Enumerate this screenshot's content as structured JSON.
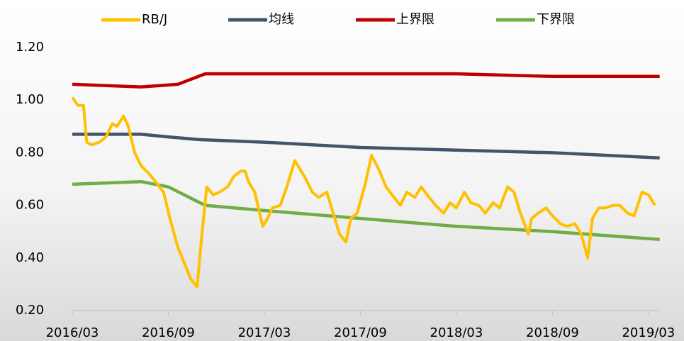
{
  "chart_data": {
    "type": "line",
    "xlim": [
      0,
      36.7
    ],
    "xticks": [
      {
        "value": 0,
        "label": "2016/03"
      },
      {
        "value": 6,
        "label": "2016/09"
      },
      {
        "value": 12,
        "label": "2017/03"
      },
      {
        "value": 18,
        "label": "2017/09"
      },
      {
        "value": 24,
        "label": "2018/03"
      },
      {
        "value": 30,
        "label": "2018/09"
      },
      {
        "value": 36,
        "label": "2019/03"
      }
    ],
    "ylim": [
      0.2,
      1.2
    ],
    "yticks": [
      {
        "value": 0.2,
        "label": "0.20"
      },
      {
        "value": 0.4,
        "label": "0.40"
      },
      {
        "value": 0.6,
        "label": "0.60"
      },
      {
        "value": 0.8,
        "label": "0.80"
      },
      {
        "value": 1.0,
        "label": "1.00"
      },
      {
        "value": 1.2,
        "label": "1.20"
      }
    ],
    "grid": false,
    "legend": "top",
    "series": [
      {
        "name": "RB/J",
        "color": "#ffc000",
        "x": [
          0,
          0.35,
          0.7,
          0.9,
          1.2,
          1.7,
          2.1,
          2.5,
          2.8,
          3.2,
          3.5,
          3.9,
          4.3,
          4.8,
          5.2,
          5.7,
          6.1,
          6.6,
          7.0,
          7.4,
          7.8,
          8.1,
          8.4,
          8.8,
          9.2,
          9.7,
          10.1,
          10.5,
          10.8,
          11.0,
          11.4,
          11.9,
          12.2,
          12.5,
          13.0,
          13.4,
          13.9,
          14.1,
          14.5,
          15.0,
          15.4,
          15.9,
          16.3,
          16.7,
          17.1,
          17.4,
          17.8,
          18.3,
          18.7,
          19.2,
          19.6,
          20.1,
          20.5,
          20.9,
          21.4,
          21.8,
          22.3,
          22.7,
          23.2,
          23.6,
          24.0,
          24.5,
          24.9,
          25.4,
          25.8,
          26.3,
          26.7,
          27.2,
          27.6,
          28.0,
          28.5,
          28.7,
          29.1,
          29.6,
          30.0,
          30.5,
          30.9,
          31.4,
          31.8,
          32.2,
          32.5,
          32.9,
          33.3,
          33.8,
          34.2,
          34.7,
          35.1,
          35.6,
          36.0,
          36.4
        ],
        "values": [
          1.01,
          0.98,
          0.98,
          0.84,
          0.83,
          0.84,
          0.86,
          0.91,
          0.9,
          0.94,
          0.9,
          0.8,
          0.75,
          0.72,
          0.69,
          0.65,
          0.55,
          0.44,
          0.38,
          0.32,
          0.29,
          0.49,
          0.67,
          0.64,
          0.65,
          0.67,
          0.71,
          0.73,
          0.73,
          0.69,
          0.65,
          0.52,
          0.55,
          0.59,
          0.6,
          0.67,
          0.77,
          0.75,
          0.71,
          0.65,
          0.63,
          0.65,
          0.57,
          0.49,
          0.46,
          0.55,
          0.57,
          0.68,
          0.79,
          0.73,
          0.67,
          0.63,
          0.6,
          0.65,
          0.63,
          0.67,
          0.63,
          0.6,
          0.57,
          0.61,
          0.59,
          0.65,
          0.61,
          0.6,
          0.57,
          0.61,
          0.59,
          0.67,
          0.65,
          0.57,
          0.49,
          0.55,
          0.57,
          0.59,
          0.56,
          0.53,
          0.52,
          0.53,
          0.49,
          0.4,
          0.55,
          0.59,
          0.59,
          0.6,
          0.6,
          0.57,
          0.56,
          0.65,
          0.64,
          0.6
        ]
      },
      {
        "name": "均线",
        "color": "#44546a",
        "x": [
          0,
          4.3,
          6.0,
          7.9,
          12,
          18,
          24,
          30,
          36.7
        ],
        "values": [
          0.87,
          0.87,
          0.86,
          0.85,
          0.84,
          0.82,
          0.81,
          0.8,
          0.78
        ]
      },
      {
        "name": "上界限",
        "color": "#c00000",
        "x": [
          0,
          4.3,
          6.6,
          8.3,
          12,
          18,
          24,
          30,
          36.7
        ],
        "values": [
          1.06,
          1.05,
          1.06,
          1.1,
          1.1,
          1.1,
          1.1,
          1.09,
          1.09
        ]
      },
      {
        "name": "下界限",
        "color": "#70ad47",
        "x": [
          0,
          4.3,
          6.0,
          8.3,
          12,
          18,
          24,
          30,
          36.7
        ],
        "values": [
          0.68,
          0.69,
          0.67,
          0.6,
          0.58,
          0.55,
          0.52,
          0.5,
          0.47
        ]
      }
    ]
  }
}
